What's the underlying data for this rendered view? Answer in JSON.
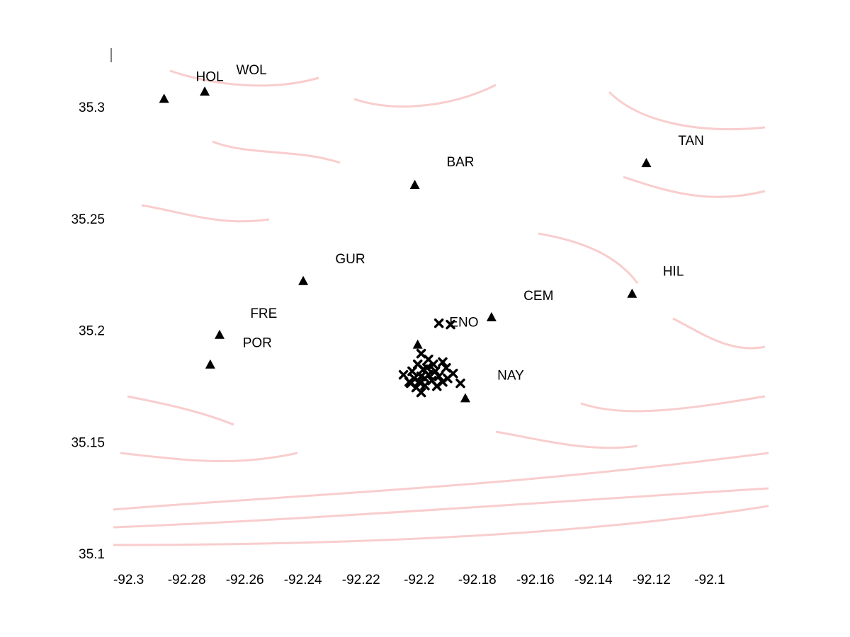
{
  "chart_data": {
    "type": "scatter",
    "xlim": [
      -92.306,
      -92.079
    ],
    "ylim": [
      35.095,
      35.32
    ],
    "xticks": [
      -92.3,
      -92.28,
      -92.26,
      -92.24,
      -92.22,
      -92.2,
      -92.18,
      -92.16,
      -92.14,
      -92.12,
      -92.1
    ],
    "yticks": [
      35.1,
      35.15,
      35.2,
      35.25,
      35.3
    ],
    "series": [
      {
        "marker": "triangle",
        "color": "#000000",
        "x": [
          -92.2878,
          -92.2738,
          -92.2015,
          -92.1218,
          -92.2399,
          -92.2687,
          -92.2719,
          -92.2005,
          -92.1751,
          -92.1841,
          -92.1267
        ],
        "y": [
          35.3044,
          35.3076,
          35.2658,
          35.2756,
          35.2228,
          35.1987,
          35.1854,
          35.1943,
          35.2066,
          35.1703,
          35.2171
        ]
      },
      {
        "marker": "cross",
        "color": "#000000",
        "x": [
          -92.1932,
          -92.1892,
          -92.1993,
          -92.1968,
          -92.2005,
          -92.1951,
          -92.1919,
          -92.2024,
          -92.1985,
          -92.1944,
          -92.1907,
          -92.1883,
          -92.2017,
          -92.1993,
          -92.1968,
          -92.1932,
          -92.2034,
          -92.2,
          -92.1956,
          -92.1919,
          -92.1858,
          -92.201,
          -92.198,
          -92.1939,
          -92.1993,
          -92.2029,
          -92.1973,
          -92.2054,
          -92.1902,
          -92.198
        ],
        "y": [
          35.2038,
          35.2032,
          35.1902,
          35.1876,
          35.1854,
          35.1854,
          35.1864,
          35.1823,
          35.1832,
          35.1823,
          35.1838,
          35.1813,
          35.1791,
          35.18,
          35.1807,
          35.18,
          35.1775,
          35.1775,
          35.1781,
          35.1775,
          35.1769,
          35.175,
          35.1759,
          35.1756,
          35.1728,
          35.1769,
          35.1838,
          35.1807,
          35.1791,
          35.1791
        ]
      }
    ],
    "annotations": [
      {
        "text": "HOL",
        "x": -92.2721,
        "y": 35.3139
      },
      {
        "text": "WOL",
        "x": -92.2577,
        "y": 35.3168
      },
      {
        "text": "TAN",
        "x": -92.1064,
        "y": 35.2851
      },
      {
        "text": "BAR",
        "x": -92.1858,
        "y": 35.2756
      },
      {
        "text": "GUR",
        "x": -92.2237,
        "y": 35.2323
      },
      {
        "text": "HIL",
        "x": -92.1125,
        "y": 35.2266
      },
      {
        "text": "CEM",
        "x": -92.1589,
        "y": 35.2158
      },
      {
        "text": "FRE",
        "x": -92.2535,
        "y": 35.2079
      },
      {
        "text": "ENO",
        "x": -92.1846,
        "y": 35.2038
      },
      {
        "text": "POR",
        "x": -92.2557,
        "y": 35.1946
      },
      {
        "text": "NAY",
        "x": -92.1685,
        "y": 35.1801
      }
    ]
  }
}
